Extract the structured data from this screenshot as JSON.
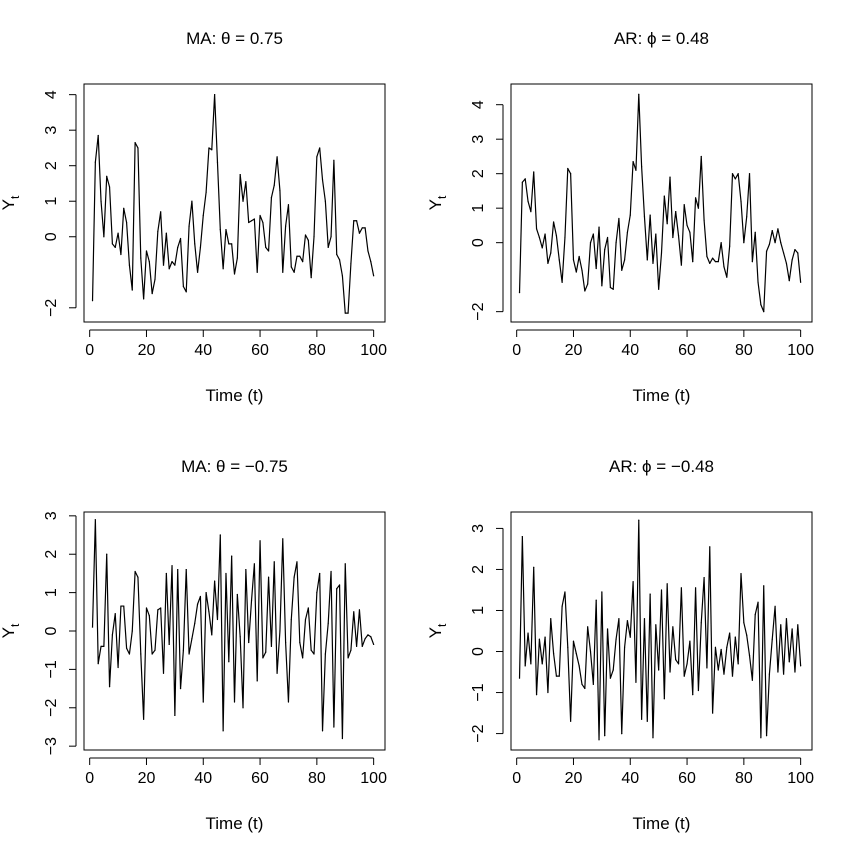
{
  "chart_data": [
    {
      "type": "line",
      "title": "MA: θ = 0.75",
      "xlabel": "Time (t)",
      "ylabel_base": "Y",
      "ylabel_sub": "t",
      "xlim": [
        -2,
        104
      ],
      "ylim": [
        -2.4,
        4.3
      ],
      "xticks": [
        0,
        20,
        40,
        60,
        80,
        100
      ],
      "xtick_labels": [
        "0",
        "20",
        "40",
        "60",
        "80",
        "100"
      ],
      "yticks": [
        -2,
        0,
        1,
        2,
        3,
        4
      ],
      "ytick_labels": [
        "−2",
        "0",
        "1",
        "2",
        "3",
        "4"
      ],
      "series": [
        {
          "x": [
            1,
            2,
            3,
            4,
            5,
            6,
            7,
            8,
            9,
            10,
            11,
            12,
            13,
            14,
            15,
            16,
            17,
            18,
            19,
            20,
            21,
            22,
            23,
            24,
            25,
            26,
            27,
            28,
            29,
            30,
            31,
            32,
            33,
            34,
            35,
            36,
            37,
            38,
            39,
            40,
            41,
            42,
            43,
            44,
            45,
            46,
            47,
            48,
            49,
            50,
            51,
            52,
            53,
            54,
            55,
            56,
            57,
            58,
            59,
            60,
            61,
            62,
            63,
            64,
            65,
            66,
            67,
            68,
            69,
            70,
            71,
            72,
            73,
            74,
            75,
            76,
            77,
            78,
            79,
            80,
            81,
            82,
            83,
            84,
            85,
            86,
            87,
            88,
            89,
            90,
            91,
            92,
            93,
            94,
            95,
            96,
            97,
            98,
            99,
            100
          ],
          "y": [
            -1.8,
            2.1,
            2.85,
            1.0,
            0.0,
            1.7,
            1.4,
            -0.2,
            -0.3,
            0.1,
            -0.5,
            0.8,
            0.4,
            -0.8,
            -1.5,
            2.65,
            2.5,
            -0.6,
            -1.75,
            -0.4,
            -0.7,
            -1.6,
            -1.2,
            0.15,
            0.7,
            -0.8,
            0.1,
            -0.9,
            -0.7,
            -0.8,
            -0.3,
            -0.05,
            -1.4,
            -1.55,
            0.3,
            1.0,
            -0.2,
            -1.0,
            -0.3,
            0.6,
            1.25,
            2.5,
            2.45,
            4.0,
            2.1,
            0.2,
            -0.9,
            0.2,
            -0.2,
            -0.2,
            -1.05,
            -0.6,
            1.75,
            1.0,
            1.55,
            0.4,
            0.45,
            0.5,
            -1.0,
            0.6,
            0.4,
            -0.3,
            -0.4,
            1.1,
            1.45,
            2.25,
            1.3,
            -1.0,
            0.3,
            0.9,
            -0.85,
            -1.0,
            -0.55,
            -0.55,
            -0.7,
            0.05,
            -0.1,
            -1.15,
            0.0,
            2.25,
            2.5,
            1.6,
            1.0,
            -0.3,
            0.0,
            2.15,
            -0.5,
            -0.65,
            -1.1,
            -2.15,
            -2.15,
            -0.75,
            0.45,
            0.45,
            0.1,
            0.25,
            0.25,
            -0.4,
            -0.7,
            -1.1
          ]
        }
      ]
    },
    {
      "type": "line",
      "title": "AR: ϕ = 0.48",
      "xlabel": "Time (t)",
      "ylabel_base": "Y",
      "ylabel_sub": "t",
      "xlim": [
        -2,
        104
      ],
      "ylim": [
        -2.3,
        4.6
      ],
      "xticks": [
        0,
        20,
        40,
        60,
        80,
        100
      ],
      "xtick_labels": [
        "0",
        "20",
        "40",
        "60",
        "80",
        "100"
      ],
      "yticks": [
        -2,
        0,
        1,
        2,
        3,
        4
      ],
      "ytick_labels": [
        "−2",
        "0",
        "1",
        "2",
        "3",
        "4"
      ],
      "series": [
        {
          "x": [
            1,
            2,
            3,
            4,
            5,
            6,
            7,
            8,
            9,
            10,
            11,
            12,
            13,
            14,
            15,
            16,
            17,
            18,
            19,
            20,
            21,
            22,
            23,
            24,
            25,
            26,
            27,
            28,
            29,
            30,
            31,
            32,
            33,
            34,
            35,
            36,
            37,
            38,
            39,
            40,
            41,
            42,
            43,
            44,
            45,
            46,
            47,
            48,
            49,
            50,
            51,
            52,
            53,
            54,
            55,
            56,
            57,
            58,
            59,
            60,
            61,
            62,
            63,
            64,
            65,
            66,
            67,
            68,
            69,
            70,
            71,
            72,
            73,
            74,
            75,
            76,
            77,
            78,
            79,
            80,
            81,
            82,
            83,
            84,
            85,
            86,
            87,
            88,
            89,
            90,
            91,
            92,
            93,
            94,
            95,
            96,
            97,
            98,
            99,
            100
          ],
          "y": [
            -1.45,
            1.75,
            1.85,
            1.2,
            0.9,
            2.05,
            0.4,
            0.15,
            -0.15,
            0.25,
            -0.6,
            -0.3,
            0.6,
            0.2,
            -0.5,
            -1.15,
            0.15,
            2.15,
            2.0,
            -0.5,
            -0.85,
            -0.4,
            -0.8,
            -1.4,
            -1.2,
            0.0,
            0.25,
            -0.75,
            0.45,
            -1.25,
            -0.2,
            0.15,
            -1.3,
            -1.35,
            0.0,
            0.7,
            -0.8,
            -0.5,
            0.3,
            0.8,
            2.35,
            2.1,
            4.3,
            2.2,
            0.75,
            -0.5,
            0.8,
            -0.6,
            0.25,
            -1.35,
            -0.3,
            1.35,
            0.55,
            1.9,
            0.15,
            0.9,
            0.2,
            -0.65,
            1.1,
            0.5,
            0.3,
            -0.55,
            1.3,
            1.0,
            2.5,
            0.65,
            -0.4,
            -0.6,
            -0.45,
            -0.55,
            -0.55,
            0.0,
            -0.7,
            -1.0,
            -0.1,
            2.0,
            1.85,
            2.0,
            1.2,
            0.0,
            0.75,
            2.0,
            -0.55,
            0.3,
            -1.15,
            -1.8,
            -2.0,
            -0.25,
            -0.05,
            0.35,
            0.0,
            0.4,
            0.0,
            -0.3,
            -0.6,
            -1.1,
            -0.5,
            -0.2,
            -0.3,
            -1.15
          ]
        }
      ]
    },
    {
      "type": "line",
      "title": "MA: θ = −0.75",
      "xlabel": "Time (t)",
      "ylabel_base": "Y",
      "ylabel_sub": "t",
      "xlim": [
        -2,
        104
      ],
      "ylim": [
        -3.1,
        3.1
      ],
      "xticks": [
        0,
        20,
        40,
        60,
        80,
        100
      ],
      "xtick_labels": [
        "0",
        "20",
        "40",
        "60",
        "80",
        "100"
      ],
      "yticks": [
        -3,
        -2,
        -1,
        0,
        1,
        2,
        3
      ],
      "ytick_labels": [
        "−3",
        "−2",
        "−1",
        "0",
        "1",
        "2",
        "3"
      ],
      "series": [
        {
          "x": [
            1,
            2,
            3,
            4,
            5,
            6,
            7,
            8,
            9,
            10,
            11,
            12,
            13,
            14,
            15,
            16,
            17,
            18,
            19,
            20,
            21,
            22,
            23,
            24,
            25,
            26,
            27,
            28,
            29,
            30,
            31,
            32,
            33,
            34,
            35,
            36,
            37,
            38,
            39,
            40,
            41,
            42,
            43,
            44,
            45,
            46,
            47,
            48,
            49,
            50,
            51,
            52,
            53,
            54,
            55,
            56,
            57,
            58,
            59,
            60,
            61,
            62,
            63,
            64,
            65,
            66,
            67,
            68,
            69,
            70,
            71,
            72,
            73,
            74,
            75,
            76,
            77,
            78,
            79,
            80,
            81,
            82,
            83,
            84,
            85,
            86,
            87,
            88,
            89,
            90,
            91,
            92,
            93,
            94,
            95,
            96,
            97,
            98,
            99,
            100
          ],
          "y": [
            0.1,
            2.9,
            -0.85,
            -0.4,
            -0.4,
            2.0,
            -1.45,
            -0.1,
            0.45,
            -0.95,
            0.65,
            0.65,
            -0.45,
            -0.6,
            0.0,
            1.55,
            1.4,
            -0.6,
            -2.3,
            0.6,
            0.4,
            -0.6,
            -0.5,
            0.55,
            0.6,
            -1.1,
            1.5,
            -0.35,
            1.7,
            -2.2,
            1.6,
            -1.5,
            -0.5,
            1.6,
            -0.6,
            -0.2,
            0.2,
            0.7,
            0.9,
            -1.85,
            1.0,
            0.5,
            -0.1,
            1.3,
            0.3,
            2.5,
            -2.6,
            1.5,
            -0.8,
            1.95,
            -1.85,
            0.95,
            -0.15,
            -2.0,
            1.6,
            -0.3,
            0.8,
            1.75,
            -1.3,
            2.35,
            -0.7,
            -0.55,
            1.4,
            -0.4,
            1.8,
            -1.1,
            0.0,
            2.4,
            -0.3,
            -1.85,
            0.3,
            1.4,
            1.8,
            -0.3,
            -0.7,
            0.3,
            0.6,
            -0.5,
            -0.6,
            1.0,
            1.5,
            -2.6,
            -0.6,
            0.2,
            1.55,
            -2.5,
            1.1,
            1.2,
            -2.8,
            1.75,
            -0.7,
            -0.5,
            0.5,
            -0.4,
            0.55,
            -0.4,
            -0.2,
            -0.1,
            -0.15,
            -0.35
          ]
        }
      ]
    },
    {
      "type": "line",
      "title": "AR: ϕ = −0.48",
      "xlabel": "Time (t)",
      "ylabel_base": "Y",
      "ylabel_sub": "t",
      "xlim": [
        -2,
        104
      ],
      "ylim": [
        -2.4,
        3.4
      ],
      "xticks": [
        0,
        20,
        40,
        60,
        80,
        100
      ],
      "xtick_labels": [
        "0",
        "20",
        "40",
        "60",
        "80",
        "100"
      ],
      "yticks": [
        -2,
        -1,
        0,
        1,
        2,
        3
      ],
      "ytick_labels": [
        "−2",
        "−1",
        "0",
        "1",
        "2",
        "3"
      ],
      "series": [
        {
          "x": [
            1,
            2,
            3,
            4,
            5,
            6,
            7,
            8,
            9,
            10,
            11,
            12,
            13,
            14,
            15,
            16,
            17,
            18,
            19,
            20,
            21,
            22,
            23,
            24,
            25,
            26,
            27,
            28,
            29,
            30,
            31,
            32,
            33,
            34,
            35,
            36,
            37,
            38,
            39,
            40,
            41,
            42,
            43,
            44,
            45,
            46,
            47,
            48,
            49,
            50,
            51,
            52,
            53,
            54,
            55,
            56,
            57,
            58,
            59,
            60,
            61,
            62,
            63,
            64,
            65,
            66,
            67,
            68,
            69,
            70,
            71,
            72,
            73,
            74,
            75,
            76,
            77,
            78,
            79,
            80,
            81,
            82,
            83,
            84,
            85,
            86,
            87,
            88,
            89,
            90,
            91,
            92,
            93,
            94,
            95,
            96,
            97,
            98,
            99,
            100
          ],
          "y": [
            -0.65,
            2.8,
            -0.35,
            0.45,
            -0.3,
            2.05,
            -1.05,
            0.3,
            -0.3,
            0.35,
            -1.0,
            0.8,
            -0.05,
            -0.6,
            -0.6,
            1.1,
            1.45,
            0.1,
            -1.7,
            0.25,
            -0.05,
            -0.35,
            -0.8,
            -0.9,
            0.6,
            0.0,
            -0.8,
            1.25,
            -2.15,
            1.45,
            -2.05,
            0.55,
            -0.65,
            -0.45,
            0.3,
            0.8,
            -2.0,
            0.1,
            0.75,
            0.35,
            1.7,
            -0.75,
            3.2,
            -1.65,
            0.8,
            -1.7,
            1.4,
            -2.1,
            0.65,
            -0.45,
            1.5,
            -1.15,
            1.65,
            -0.5,
            0.6,
            -0.2,
            -0.3,
            1.55,
            -0.6,
            -0.3,
            0.25,
            -1.05,
            1.55,
            -0.95,
            0.7,
            1.8,
            -0.4,
            2.55,
            -1.5,
            0.1,
            -0.45,
            0.05,
            -0.55,
            0.1,
            0.45,
            -0.6,
            0.35,
            -0.3,
            1.9,
            0.7,
            0.4,
            -0.1,
            -0.7,
            0.9,
            1.2,
            -2.1,
            1.6,
            -2.05,
            -0.55,
            0.3,
            1.1,
            -0.5,
            0.65,
            -0.55,
            0.8,
            -0.25,
            0.55,
            -0.5,
            0.65,
            -0.35
          ]
        }
      ]
    }
  ]
}
